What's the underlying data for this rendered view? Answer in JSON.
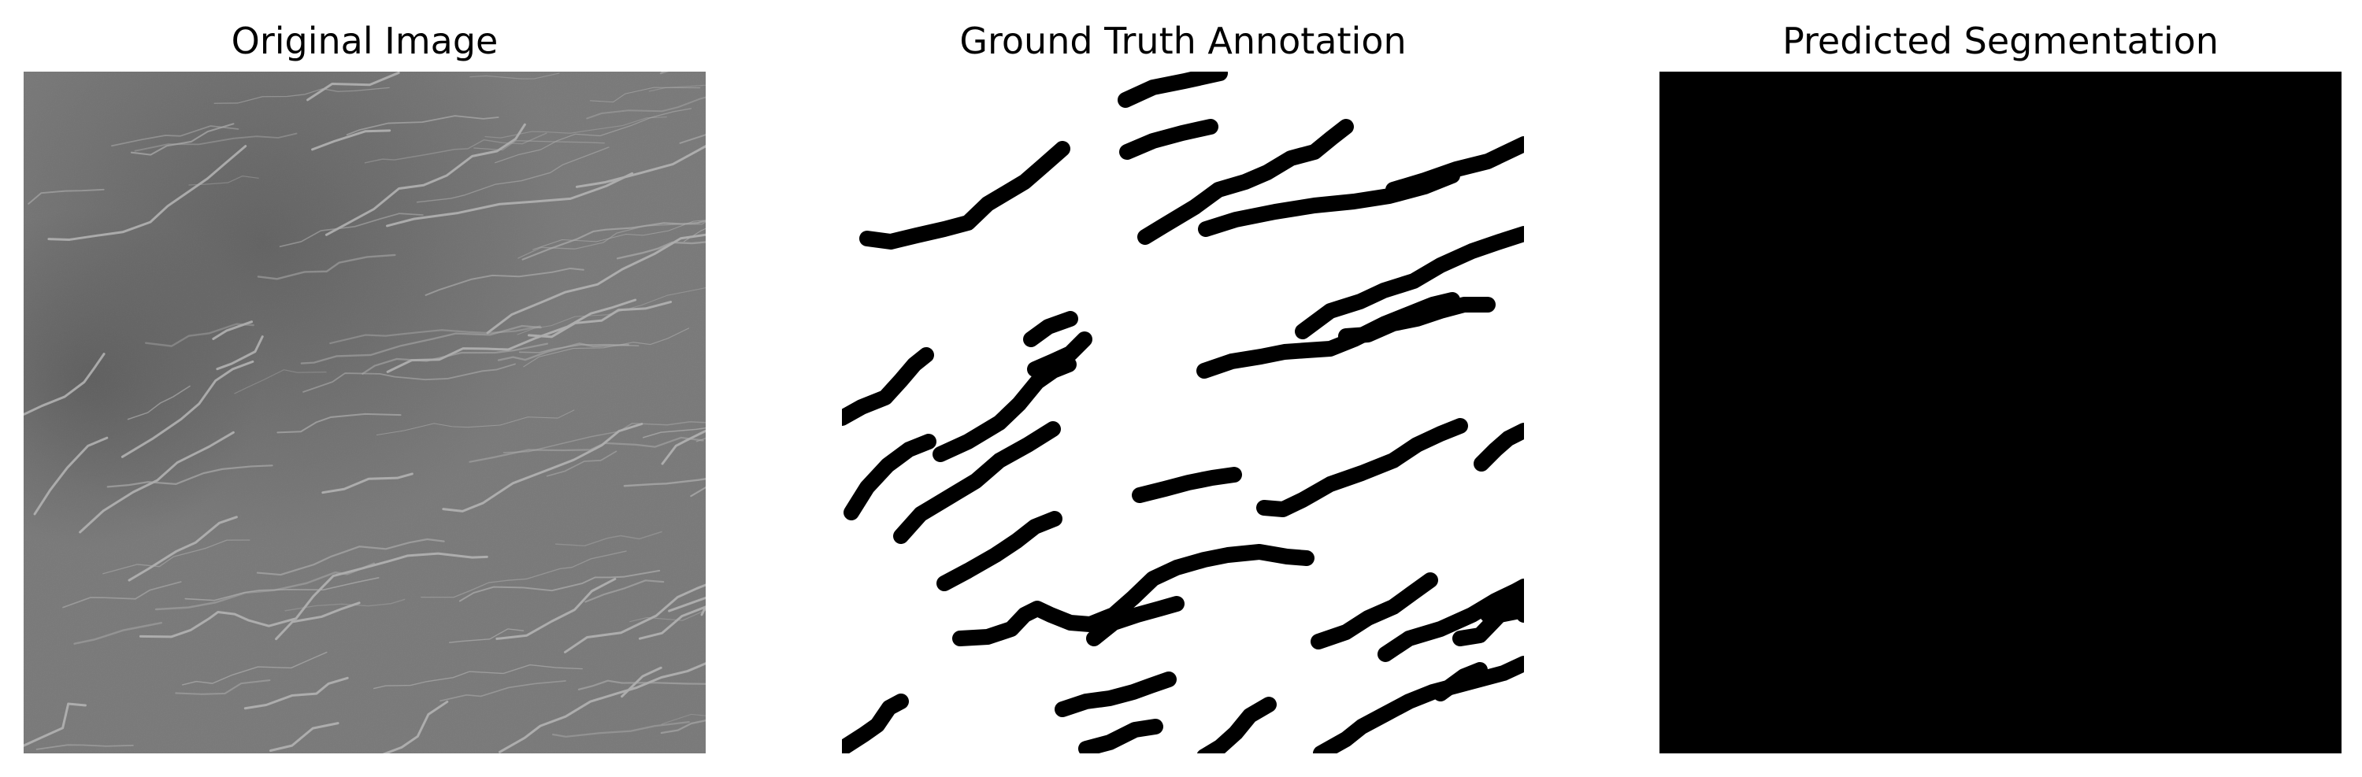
{
  "figure": {
    "panels": [
      {
        "id": "original",
        "title": "Original Image"
      },
      {
        "id": "gt",
        "title": "Ground Truth Annotation"
      },
      {
        "id": "pred",
        "title": "Predicted Segmentation"
      }
    ]
  },
  "colors": {
    "background": "#ffffff",
    "original_base": "#7c7c7c",
    "original_dark": "#5f5f5f",
    "crack_light": "#bdbdbd",
    "mask_foreground": "#000000",
    "mask_background": "#ffffff",
    "prediction": "#000000"
  }
}
